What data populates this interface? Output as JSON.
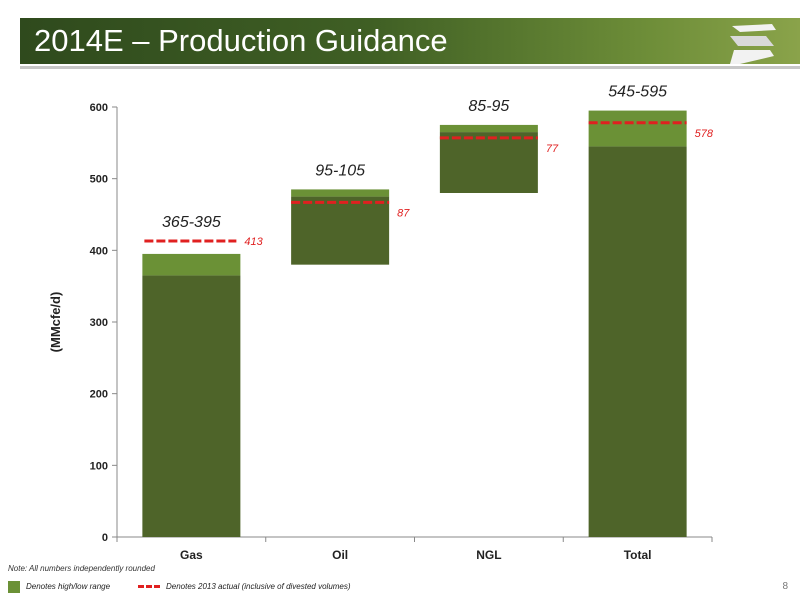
{
  "slide": {
    "title": "2014E – Production Guidance",
    "note": "Note: All numbers independently rounded",
    "legend_range": "Denotes high/low range",
    "legend_actual": "Denotes 2013 actual (inclusive of divested volumes)",
    "page_number": "8",
    "logo_icon": "company-s-logo"
  },
  "colors": {
    "bar_dark": "#4e6429",
    "bar_light": "#6b9136",
    "actual_line": "#e02020"
  },
  "chart_data": {
    "type": "bar",
    "subtype": "waterfall-range",
    "categories": [
      "Gas",
      "Oil",
      "NGL",
      "Total"
    ],
    "ylabel": "(MMcfe/d)",
    "ylim": [
      0,
      600
    ],
    "yticks": [
      0,
      100,
      200,
      300,
      400,
      500,
      600
    ],
    "grid": false,
    "bars": [
      {
        "category": "Gas",
        "base": 0,
        "low": 365,
        "high": 395,
        "range_label": "365-395",
        "actual": 413,
        "actual_label": "413"
      },
      {
        "category": "Oil",
        "base": 380,
        "low": 475,
        "high": 485,
        "range_label": "95-105",
        "actual": 467,
        "actual_label": "87"
      },
      {
        "category": "NGL",
        "base": 480,
        "low": 565,
        "high": 575,
        "range_label": "85-95",
        "actual": 557,
        "actual_label": "77"
      },
      {
        "category": "Total",
        "base": 0,
        "low": 545,
        "high": 595,
        "range_label": "545-595",
        "actual": 578,
        "actual_label": "578"
      }
    ]
  }
}
